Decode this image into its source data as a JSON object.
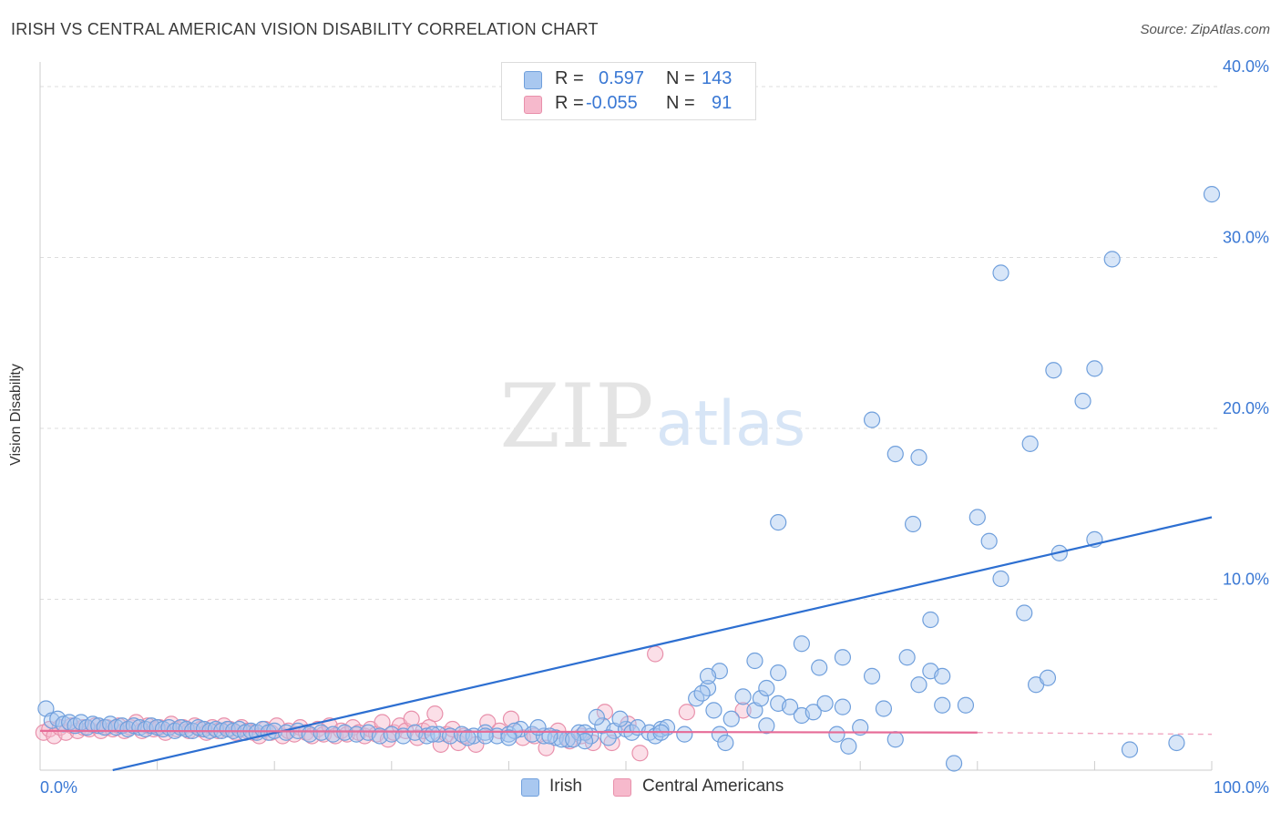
{
  "title": "IRISH VS CENTRAL AMERICAN VISION DISABILITY CORRELATION CHART",
  "source": "Source: ZipAtlas.com",
  "watermark": {
    "zip": "ZIP",
    "atlas": "atlas"
  },
  "legend_top": {
    "rows": [
      {
        "r_label": "R =",
        "r_value": "0.597",
        "n_label": "N =",
        "n_value": "143"
      },
      {
        "r_label": "R =",
        "r_value": "-0.055",
        "n_label": "N =",
        "n_value": "91"
      }
    ]
  },
  "legend_bottom": {
    "items": [
      "Irish",
      "Central Americans"
    ]
  },
  "colors": {
    "irish_fill": "#a9c8f0",
    "irish_stroke": "#6f9fdc",
    "irish_line": "#2d6fd1",
    "ca_fill": "#f6b9cc",
    "ca_stroke": "#e890ab",
    "ca_line": "#e66b97",
    "tick_label": "#3a78d4",
    "grid": "#dddddd"
  },
  "chart_data": {
    "type": "scatter",
    "title": "IRISH VS CENTRAL AMERICAN VISION DISABILITY CORRELATION CHART",
    "xlabel": "",
    "ylabel": "Vision Disability",
    "xlim": [
      0,
      100
    ],
    "ylim": [
      0,
      40.8
    ],
    "x_tick_labels": [
      "0.0%",
      "100.0%"
    ],
    "y_ticks": [
      10,
      20,
      30,
      40
    ],
    "y_tick_labels": [
      "10.0%",
      "20.0%",
      "30.0%",
      "40.0%"
    ],
    "grid": true,
    "legend_position": "top-center",
    "series": [
      {
        "name": "Irish",
        "r": 0.597,
        "n": 143,
        "trend": {
          "x": [
            6.2,
            100
          ],
          "y": [
            0.0,
            14.8
          ]
        },
        "points": [
          [
            0.5,
            3.6
          ],
          [
            1.0,
            2.9
          ],
          [
            1.5,
            3.0
          ],
          [
            2.0,
            2.7
          ],
          [
            2.5,
            2.8
          ],
          [
            3.0,
            2.6
          ],
          [
            3.5,
            2.8
          ],
          [
            4.0,
            2.5
          ],
          [
            4.5,
            2.7
          ],
          [
            5.0,
            2.6
          ],
          [
            5.5,
            2.5
          ],
          [
            6.0,
            2.7
          ],
          [
            6.5,
            2.5
          ],
          [
            7.0,
            2.6
          ],
          [
            7.5,
            2.4
          ],
          [
            8.0,
            2.6
          ],
          [
            8.5,
            2.5
          ],
          [
            9.0,
            2.4
          ],
          [
            9.5,
            2.6
          ],
          [
            10.0,
            2.5
          ],
          [
            10.5,
            2.4
          ],
          [
            11.0,
            2.5
          ],
          [
            11.5,
            2.3
          ],
          [
            12.0,
            2.5
          ],
          [
            12.5,
            2.4
          ],
          [
            13.0,
            2.3
          ],
          [
            13.5,
            2.5
          ],
          [
            14.0,
            2.4
          ],
          [
            14.5,
            2.3
          ],
          [
            15.0,
            2.4
          ],
          [
            15.5,
            2.3
          ],
          [
            16.0,
            2.4
          ],
          [
            16.5,
            2.3
          ],
          [
            17.0,
            2.4
          ],
          [
            17.5,
            2.2
          ],
          [
            18.0,
            2.3
          ],
          [
            18.5,
            2.2
          ],
          [
            19.0,
            2.4
          ],
          [
            19.5,
            2.2
          ],
          [
            20.0,
            2.3
          ],
          [
            21.0,
            2.2
          ],
          [
            22.0,
            2.3
          ],
          [
            23.0,
            2.1
          ],
          [
            24.0,
            2.2
          ],
          [
            25.0,
            2.1
          ],
          [
            26.0,
            2.2
          ],
          [
            27.0,
            2.1
          ],
          [
            28.0,
            2.2
          ],
          [
            29.0,
            2.0
          ],
          [
            30.0,
            2.1
          ],
          [
            31.0,
            2.0
          ],
          [
            32.0,
            2.2
          ],
          [
            33.0,
            2.0
          ],
          [
            34.0,
            2.1
          ],
          [
            35.0,
            2.0
          ],
          [
            36.0,
            2.1
          ],
          [
            37.0,
            2.0
          ],
          [
            38.0,
            2.2
          ],
          [
            39.0,
            2.0
          ],
          [
            40.0,
            2.1
          ],
          [
            41.0,
            2.4
          ],
          [
            42.0,
            2.1
          ],
          [
            43.0,
            2.0
          ],
          [
            44.0,
            1.9
          ],
          [
            45.0,
            1.8
          ],
          [
            46.0,
            2.2
          ],
          [
            47.0,
            2.0
          ],
          [
            48.0,
            2.6
          ],
          [
            49.0,
            2.3
          ],
          [
            50.0,
            2.4
          ],
          [
            38.0,
            2.0
          ],
          [
            40.5,
            2.3
          ],
          [
            42.5,
            2.5
          ],
          [
            44.5,
            1.8
          ],
          [
            46.5,
            2.2
          ],
          [
            47.5,
            3.1
          ],
          [
            49.5,
            3.0
          ],
          [
            50.5,
            2.2
          ],
          [
            51.0,
            2.5
          ],
          [
            52.0,
            2.2
          ],
          [
            52.5,
            2.0
          ],
          [
            53.0,
            2.4
          ],
          [
            53.5,
            2.5
          ],
          [
            55.0,
            2.1
          ],
          [
            56.0,
            4.2
          ],
          [
            57.0,
            4.8
          ],
          [
            56.5,
            4.5
          ],
          [
            57.5,
            3.5
          ],
          [
            58.0,
            2.1
          ],
          [
            58.5,
            1.6
          ],
          [
            58.0,
            5.8
          ],
          [
            59.0,
            3.0
          ],
          [
            60.0,
            4.3
          ],
          [
            61.0,
            3.5
          ],
          [
            61.5,
            4.2
          ],
          [
            62.0,
            2.6
          ],
          [
            63.0,
            3.9
          ],
          [
            64.0,
            3.7
          ],
          [
            65.0,
            3.2
          ],
          [
            66.0,
            3.4
          ],
          [
            67.0,
            3.9
          ],
          [
            68.0,
            2.1
          ],
          [
            68.5,
            3.7
          ],
          [
            69.0,
            1.4
          ],
          [
            70.0,
            2.5
          ],
          [
            71.0,
            5.5
          ],
          [
            72.0,
            3.6
          ],
          [
            73.0,
            1.8
          ],
          [
            74.0,
            6.6
          ],
          [
            75.0,
            5.0
          ],
          [
            76.0,
            5.8
          ],
          [
            77.0,
            3.8
          ],
          [
            78.0,
            0.4
          ],
          [
            79.0,
            3.8
          ],
          [
            80.0,
            14.8
          ],
          [
            81.0,
            13.4
          ],
          [
            82.0,
            11.2
          ],
          [
            84.0,
            9.2
          ],
          [
            85.0,
            5.0
          ],
          [
            86.0,
            5.4
          ],
          [
            87.0,
            12.7
          ],
          [
            89.0,
            21.6
          ],
          [
            90.0,
            13.5
          ],
          [
            93.0,
            1.2
          ],
          [
            97.0,
            1.6
          ],
          [
            57.0,
            5.5
          ],
          [
            46.5,
            1.7
          ],
          [
            40.0,
            1.9
          ],
          [
            53.0,
            2.2
          ],
          [
            63.0,
            14.5
          ],
          [
            63.0,
            5.7
          ],
          [
            65.0,
            7.4
          ],
          [
            66.5,
            6.0
          ],
          [
            68.5,
            6.6
          ],
          [
            71.0,
            20.5
          ],
          [
            73.0,
            18.5
          ],
          [
            74.5,
            14.4
          ],
          [
            75.0,
            18.3
          ],
          [
            76.0,
            8.8
          ],
          [
            77.0,
            5.5
          ],
          [
            82.0,
            29.1
          ],
          [
            84.5,
            19.1
          ],
          [
            86.5,
            23.4
          ],
          [
            90.0,
            23.5
          ],
          [
            91.5,
            29.9
          ],
          [
            100.0,
            33.7
          ],
          [
            61.0,
            6.4
          ],
          [
            62.0,
            4.8
          ],
          [
            45.5,
            1.8
          ],
          [
            48.5,
            1.9
          ],
          [
            43.5,
            2.0
          ],
          [
            36.5,
            1.9
          ],
          [
            33.5,
            2.1
          ]
        ]
      },
      {
        "name": "Central Americans",
        "r": -0.055,
        "n": 91,
        "trend": {
          "x": [
            0,
            80
          ],
          "y": [
            2.3,
            2.2
          ]
        },
        "trend_dashed": {
          "x": [
            80,
            100
          ],
          "y": [
            2.2,
            2.1
          ]
        },
        "points": [
          [
            0.3,
            2.2
          ],
          [
            0.8,
            2.4
          ],
          [
            1.2,
            2.0
          ],
          [
            1.7,
            2.5
          ],
          [
            2.2,
            2.2
          ],
          [
            2.7,
            2.6
          ],
          [
            3.2,
            2.3
          ],
          [
            3.7,
            2.5
          ],
          [
            4.2,
            2.4
          ],
          [
            4.7,
            2.6
          ],
          [
            5.2,
            2.3
          ],
          [
            5.7,
            2.5
          ],
          [
            6.2,
            2.4
          ],
          [
            6.7,
            2.6
          ],
          [
            7.2,
            2.3
          ],
          [
            7.7,
            2.5
          ],
          [
            8.2,
            2.8
          ],
          [
            8.7,
            2.3
          ],
          [
            9.2,
            2.6
          ],
          [
            9.7,
            2.4
          ],
          [
            10.2,
            2.5
          ],
          [
            10.7,
            2.2
          ],
          [
            11.2,
            2.7
          ],
          [
            11.7,
            2.4
          ],
          [
            12.2,
            2.5
          ],
          [
            12.7,
            2.3
          ],
          [
            13.2,
            2.6
          ],
          [
            13.7,
            2.4
          ],
          [
            14.2,
            2.2
          ],
          [
            14.7,
            2.5
          ],
          [
            15.2,
            2.3
          ],
          [
            15.7,
            2.6
          ],
          [
            16.2,
            2.4
          ],
          [
            16.7,
            2.2
          ],
          [
            17.2,
            2.5
          ],
          [
            17.7,
            2.3
          ],
          [
            18.2,
            2.2
          ],
          [
            18.7,
            2.0
          ],
          [
            19.2,
            2.4
          ],
          [
            19.7,
            2.2
          ],
          [
            20.2,
            2.6
          ],
          [
            20.7,
            2.0
          ],
          [
            21.2,
            2.3
          ],
          [
            21.7,
            2.1
          ],
          [
            22.2,
            2.5
          ],
          [
            22.7,
            2.2
          ],
          [
            23.2,
            2.0
          ],
          [
            23.7,
            2.4
          ],
          [
            24.2,
            2.1
          ],
          [
            24.7,
            2.6
          ],
          [
            25.2,
            2.0
          ],
          [
            25.7,
            2.3
          ],
          [
            26.2,
            2.1
          ],
          [
            26.7,
            2.5
          ],
          [
            27.2,
            2.2
          ],
          [
            27.7,
            2.0
          ],
          [
            28.2,
            2.4
          ],
          [
            28.7,
            2.1
          ],
          [
            29.2,
            2.8
          ],
          [
            29.7,
            1.8
          ],
          [
            30.2,
            2.2
          ],
          [
            30.7,
            2.6
          ],
          [
            31.2,
            2.3
          ],
          [
            31.7,
            3.0
          ],
          [
            32.2,
            1.9
          ],
          [
            32.7,
            2.3
          ],
          [
            33.2,
            2.5
          ],
          [
            33.7,
            3.3
          ],
          [
            34.2,
            1.5
          ],
          [
            34.7,
            2.1
          ],
          [
            35.2,
            2.4
          ],
          [
            35.7,
            1.6
          ],
          [
            36.2,
            2.0
          ],
          [
            37.2,
            1.5
          ],
          [
            38.2,
            2.8
          ],
          [
            39.2,
            2.3
          ],
          [
            40.2,
            3.0
          ],
          [
            41.2,
            1.9
          ],
          [
            42.2,
            2.0
          ],
          [
            43.2,
            1.3
          ],
          [
            44.2,
            2.3
          ],
          [
            45.2,
            1.7
          ],
          [
            46.2,
            2.0
          ],
          [
            47.2,
            1.6
          ],
          [
            48.2,
            3.4
          ],
          [
            48.8,
            1.6
          ],
          [
            50.2,
            2.7
          ],
          [
            51.2,
            1.0
          ],
          [
            52.5,
            6.8
          ],
          [
            55.2,
            3.4
          ],
          [
            60.0,
            3.5
          ]
        ]
      }
    ]
  }
}
